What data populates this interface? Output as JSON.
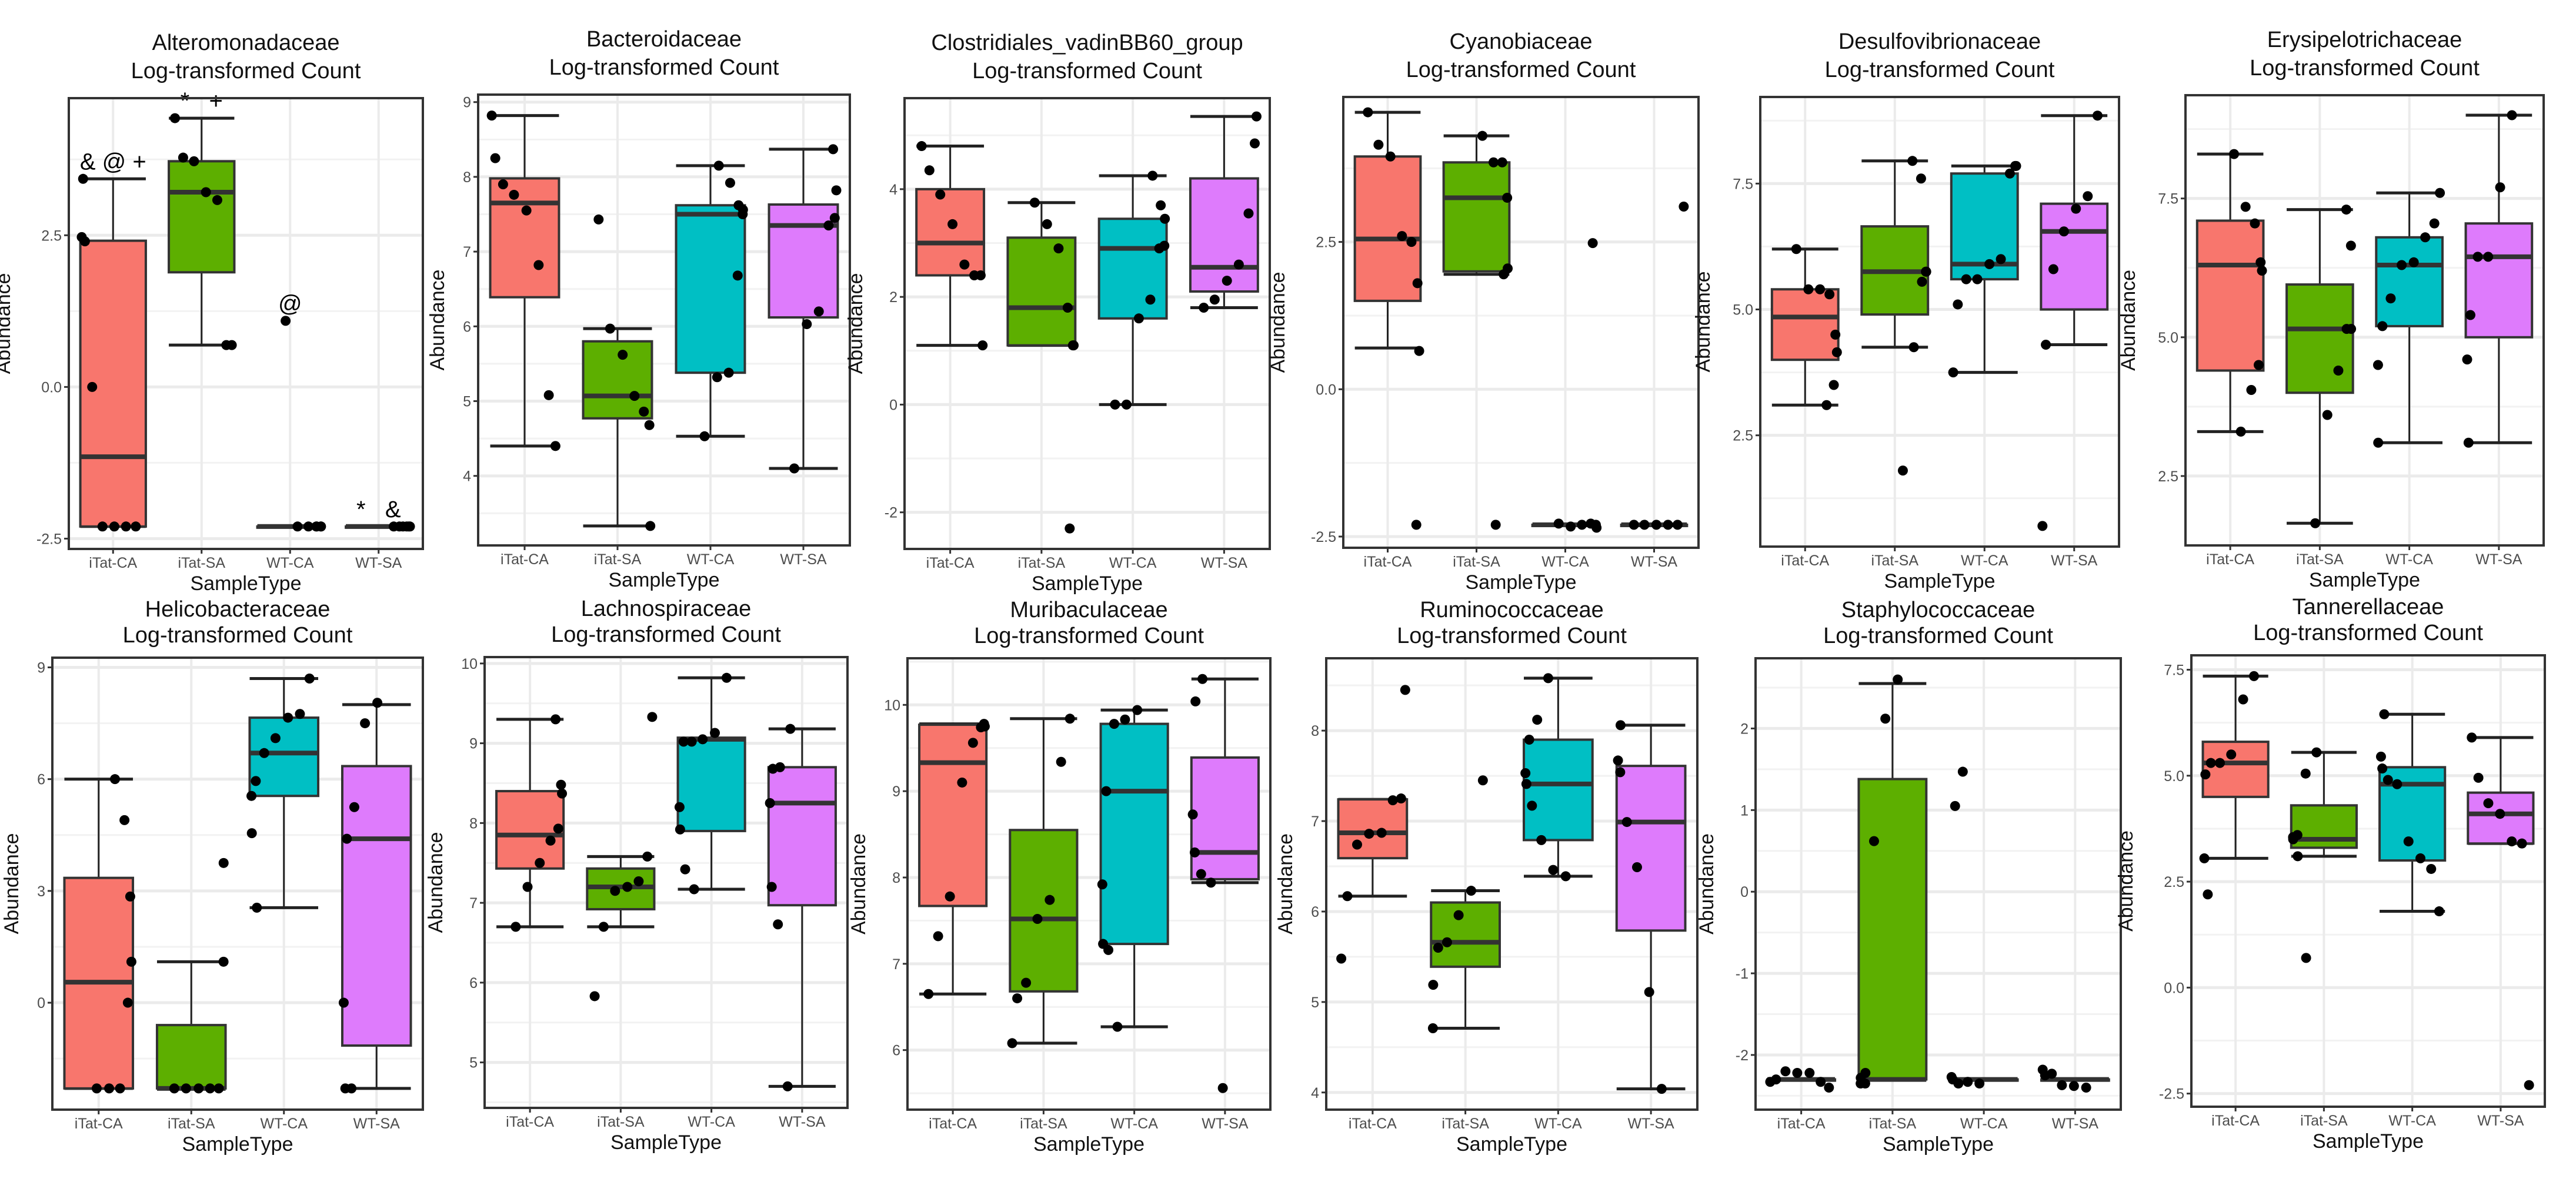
{
  "common": {
    "subtitle": "Log-transformed Count",
    "xlabel": "SampleType",
    "ylabel": "Abundance",
    "categories": [
      "iTat-CA",
      "iTat-SA",
      "WT-CA",
      "WT-SA"
    ],
    "colors": [
      "#F8766D",
      "#5DAF00",
      "#00BFC4",
      "#DE7BFC"
    ]
  },
  "chart_data": [
    {
      "type": "box",
      "title": "Alteromonadaceae",
      "ylim": [
        -2.67,
        4.76
      ],
      "yticks": [
        -2.5,
        0,
        2.5
      ],
      "tick_labels": [
        "-2.5",
        "0.0",
        "2.5"
      ],
      "groups": [
        {
          "whisker_low": -2.3,
          "q1": -2.3,
          "median": -1.15,
          "q3": 2.41,
          "whisker_high": 3.43,
          "points": [
            3.43,
            2.47,
            2.4,
            0,
            -2.3,
            -2.3,
            -2.3,
            -2.3
          ],
          "annotation": "& @ +"
        },
        {
          "whisker_low": 0.69,
          "q1": 1.89,
          "median": 3.21,
          "q3": 3.72,
          "whisker_high": 4.43,
          "points": [
            4.43,
            3.78,
            3.72,
            3.21,
            3.08,
            0.69,
            0.69
          ],
          "annotation": "*   +"
        },
        {
          "whisker_low": -2.3,
          "q1": -2.3,
          "median": -2.3,
          "q3": -2.3,
          "whisker_high": -2.3,
          "points": [
            1.09,
            -2.3,
            -2.3,
            -2.3,
            -2.3,
            -2.3,
            -2.3
          ],
          "annotation": "@"
        },
        {
          "whisker_low": -2.3,
          "q1": -2.3,
          "median": -2.3,
          "q3": -2.3,
          "whisker_high": -2.3,
          "points": [
            -2.3,
            -2.3,
            -2.3,
            -2.3,
            -2.3,
            -2.3
          ],
          "annotation": "*   &"
        }
      ]
    },
    {
      "type": "box",
      "title": "Bacteroidaceae",
      "ylim": [
        3.07,
        9.1
      ],
      "yticks": [
        4,
        5,
        6,
        7,
        8,
        9
      ],
      "tick_labels": [
        "4",
        "5",
        "6",
        "7",
        "8",
        "9"
      ],
      "groups": [
        {
          "whisker_low": 4.4,
          "q1": 6.39,
          "median": 7.65,
          "q3": 7.98,
          "whisker_high": 8.82,
          "points": [
            8.82,
            8.25,
            7.9,
            7.76,
            7.55,
            6.82,
            5.08,
            4.4
          ]
        },
        {
          "whisker_low": 3.33,
          "q1": 4.77,
          "median": 5.07,
          "q3": 5.8,
          "whisker_high": 5.97,
          "points": [
            7.43,
            5.97,
            5.62,
            5.07,
            4.86,
            4.68,
            3.33
          ]
        },
        {
          "whisker_low": 4.53,
          "q1": 5.38,
          "median": 7.5,
          "q3": 7.62,
          "whisker_high": 8.15,
          "points": [
            8.15,
            7.92,
            7.62,
            7.56,
            7.5,
            6.68,
            5.38,
            5.32,
            4.53
          ]
        },
        {
          "whisker_low": 4.1,
          "q1": 6.12,
          "median": 7.35,
          "q3": 7.63,
          "whisker_high": 8.37,
          "points": [
            8.37,
            7.82,
            7.45,
            7.35,
            6.2,
            6.03,
            4.1
          ]
        }
      ]
    },
    {
      "type": "box",
      "title": "Clostridiales_vadinBB60_group",
      "ylim": [
        -2.68,
        5.69
      ],
      "yticks": [
        -2,
        0,
        2,
        4
      ],
      "tick_labels": [
        "-2",
        "0",
        "2",
        "4"
      ],
      "groups": [
        {
          "whisker_low": 1.1,
          "q1": 2.4,
          "median": 3.0,
          "q3": 4.0,
          "whisker_high": 4.8,
          "points": [
            4.8,
            4.35,
            3.9,
            3.35,
            2.6,
            2.4,
            2.4,
            1.1
          ]
        },
        {
          "whisker_low": 1.1,
          "q1": 1.1,
          "median": 1.8,
          "q3": 3.1,
          "whisker_high": 3.75,
          "points": [
            3.75,
            3.35,
            2.9,
            1.8,
            1.1,
            1.1,
            -2.3
          ]
        },
        {
          "whisker_low": 0,
          "q1": 1.6,
          "median": 2.9,
          "q3": 3.45,
          "whisker_high": 4.25,
          "points": [
            4.25,
            3.7,
            3.45,
            2.95,
            2.9,
            1.95,
            1.6,
            0,
            0
          ]
        },
        {
          "whisker_low": 1.8,
          "q1": 2.1,
          "median": 2.55,
          "q3": 4.2,
          "whisker_high": 5.35,
          "points": [
            5.35,
            4.85,
            3.55,
            2.6,
            2.3,
            1.95,
            1.8
          ]
        }
      ]
    },
    {
      "type": "box",
      "title": "Cyanobiaceae",
      "ylim": [
        -2.69,
        4.96
      ],
      "yticks": [
        -2.5,
        0,
        2.5
      ],
      "tick_labels": [
        "-2.5",
        "0.0",
        "2.5"
      ],
      "groups": [
        {
          "whisker_low": 0.7,
          "q1": 1.5,
          "median": 2.55,
          "q3": 3.95,
          "whisker_high": 4.7,
          "points": [
            4.7,
            4.15,
            3.95,
            2.6,
            2.5,
            1.8,
            0.65,
            -2.3
          ]
        },
        {
          "whisker_low": 1.95,
          "q1": 2.0,
          "median": 3.25,
          "q3": 3.85,
          "whisker_high": 4.3,
          "points": [
            4.3,
            3.85,
            3.85,
            3.25,
            2.05,
            1.95,
            -2.3
          ]
        },
        {
          "whisker_low": -2.3,
          "q1": -2.3,
          "median": -2.3,
          "q3": -2.3,
          "whisker_high": -2.3,
          "points": [
            2.48,
            -2.35,
            -2.3,
            -2.28,
            -2.3,
            -2.33,
            -2.28
          ]
        },
        {
          "whisker_low": -2.3,
          "q1": -2.3,
          "median": -2.3,
          "q3": -2.3,
          "whisker_high": -2.3,
          "points": [
            3.1,
            -2.3,
            -2.3,
            -2.3,
            -2.3,
            -2.3
          ]
        }
      ]
    },
    {
      "type": "box",
      "title": "Desulfovibrionaceae",
      "ylim": [
        0.29,
        9.22
      ],
      "yticks": [
        2.5,
        5,
        7.5
      ],
      "tick_labels": [
        "2.5",
        "5.0",
        "7.5"
      ],
      "groups": [
        {
          "whisker_low": 3.1,
          "q1": 4.0,
          "median": 4.85,
          "q3": 5.4,
          "whisker_high": 6.2,
          "points": [
            6.2,
            5.4,
            5.4,
            5.3,
            4.5,
            4.15,
            3.5,
            3.1
          ]
        },
        {
          "whisker_low": 4.25,
          "q1": 4.9,
          "median": 5.75,
          "q3": 6.65,
          "whisker_high": 7.95,
          "points": [
            7.95,
            7.6,
            5.75,
            5.75,
            5.55,
            4.25,
            1.8
          ]
        },
        {
          "whisker_low": 3.75,
          "q1": 5.6,
          "median": 5.9,
          "q3": 7.7,
          "whisker_high": 7.85,
          "points": [
            7.85,
            7.85,
            7.7,
            6.0,
            5.9,
            5.6,
            5.6,
            5.1,
            3.75
          ]
        },
        {
          "whisker_low": 4.3,
          "q1": 5.0,
          "median": 6.55,
          "q3": 7.1,
          "whisker_high": 8.85,
          "points": [
            8.85,
            7.25,
            7.0,
            6.55,
            5.8,
            4.3,
            0.7
          ]
        }
      ]
    },
    {
      "type": "box",
      "title": "Erysipelotrichaceae",
      "ylim": [
        1.25,
        9.36
      ],
      "yticks": [
        2.5,
        5,
        7.5
      ],
      "tick_labels": [
        "2.5",
        "5.0",
        "7.5"
      ],
      "groups": [
        {
          "whisker_low": 3.3,
          "q1": 4.4,
          "median": 6.3,
          "q3": 7.1,
          "whisker_high": 8.3,
          "points": [
            8.3,
            7.35,
            7.05,
            6.35,
            6.2,
            4.5,
            4.05,
            3.3
          ]
        },
        {
          "whisker_low": 1.65,
          "q1": 4.0,
          "median": 5.15,
          "q3": 5.95,
          "whisker_high": 7.3,
          "points": [
            7.3,
            6.65,
            5.15,
            5.15,
            4.4,
            3.6,
            1.65
          ]
        },
        {
          "whisker_low": 3.1,
          "q1": 5.2,
          "median": 6.3,
          "q3": 6.8,
          "whisker_high": 7.6,
          "points": [
            7.6,
            7.05,
            6.8,
            6.35,
            6.3,
            5.7,
            5.2,
            4.5,
            3.1
          ]
        },
        {
          "whisker_low": 3.1,
          "q1": 5.0,
          "median": 6.45,
          "q3": 7.05,
          "whisker_high": 9.0,
          "points": [
            9.0,
            7.7,
            6.45,
            6.45,
            5.4,
            4.6,
            3.1
          ]
        }
      ]
    },
    {
      "type": "box",
      "title": "Helicobacteraceae",
      "ylim": [
        -2.87,
        9.26
      ],
      "yticks": [
        0,
        3,
        6,
        9
      ],
      "tick_labels": [
        "0",
        "3",
        "6",
        "9"
      ],
      "groups": [
        {
          "whisker_low": -2.3,
          "q1": -2.3,
          "median": 0.55,
          "q3": 3.35,
          "whisker_high": 6.0,
          "points": [
            6.0,
            4.9,
            2.85,
            1.1,
            0,
            -2.3,
            -2.3,
            -2.3
          ]
        },
        {
          "whisker_low": -2.3,
          "q1": -2.3,
          "median": -2.3,
          "q3": -0.6,
          "whisker_high": 1.1,
          "points": [
            3.75,
            1.1,
            -2.3,
            -2.3,
            -2.3,
            -2.3,
            -2.3
          ]
        },
        {
          "whisker_low": 2.55,
          "q1": 5.55,
          "median": 6.7,
          "q3": 7.65,
          "whisker_high": 8.7,
          "points": [
            8.7,
            7.75,
            7.65,
            7.1,
            6.7,
            5.95,
            5.55,
            4.55,
            2.55
          ]
        },
        {
          "whisker_low": -2.3,
          "q1": -1.15,
          "median": 4.4,
          "q3": 6.35,
          "whisker_high": 8.0,
          "points": [
            8.05,
            7.5,
            5.25,
            4.4,
            0,
            -2.3,
            -2.3
          ]
        }
      ]
    },
    {
      "type": "box",
      "title": "Lachnospiraceae",
      "ylim": [
        4.43,
        10.08
      ],
      "yticks": [
        5,
        6,
        7,
        8,
        9,
        10
      ],
      "tick_labels": [
        "5",
        "6",
        "7",
        "8",
        "9",
        "10"
      ],
      "groups": [
        {
          "whisker_low": 6.7,
          "q1": 7.43,
          "median": 7.85,
          "q3": 8.4,
          "whisker_high": 9.3,
          "points": [
            9.3,
            8.48,
            8.37,
            7.93,
            7.78,
            7.5,
            7.2,
            6.7
          ]
        },
        {
          "whisker_low": 6.7,
          "q1": 6.92,
          "median": 7.2,
          "q3": 7.43,
          "whisker_high": 7.58,
          "points": [
            9.33,
            7.58,
            7.27,
            7.2,
            7.15,
            6.7,
            5.83
          ]
        },
        {
          "whisker_low": 7.17,
          "q1": 7.9,
          "median": 9.05,
          "q3": 9.07,
          "whisker_high": 9.82,
          "points": [
            9.82,
            9.13,
            9.05,
            9.02,
            9.02,
            8.2,
            7.92,
            7.42,
            7.17
          ]
        },
        {
          "whisker_low": 4.7,
          "q1": 6.97,
          "median": 8.25,
          "q3": 8.7,
          "whisker_high": 9.18,
          "points": [
            9.18,
            8.7,
            8.68,
            8.25,
            7.2,
            6.73,
            4.7
          ]
        }
      ]
    },
    {
      "type": "box",
      "title": "Muribaculaceae",
      "ylim": [
        5.31,
        10.54
      ],
      "yticks": [
        6,
        7,
        8,
        9,
        10
      ],
      "tick_labels": [
        "6",
        "7",
        "8",
        "9",
        "10"
      ],
      "groups": [
        {
          "whisker_low": 6.65,
          "q1": 7.67,
          "median": 9.33,
          "q3": 9.77,
          "whisker_high": 9.78,
          "points": [
            9.78,
            9.75,
            9.74,
            9.56,
            9.1,
            7.78,
            7.32,
            6.65
          ]
        },
        {
          "whisker_low": 6.08,
          "q1": 6.68,
          "median": 7.52,
          "q3": 8.55,
          "whisker_high": 9.84,
          "points": [
            9.84,
            9.34,
            7.74,
            7.52,
            6.78,
            6.6,
            6.08
          ]
        },
        {
          "whisker_low": 6.27,
          "q1": 7.23,
          "median": 9.0,
          "q3": 9.78,
          "whisker_high": 9.94,
          "points": [
            9.94,
            9.83,
            9.78,
            9.0,
            7.92,
            7.23,
            7.16,
            6.27
          ]
        },
        {
          "whisker_low": 7.94,
          "q1": 7.98,
          "median": 8.29,
          "q3": 9.39,
          "whisker_high": 10.3,
          "points": [
            10.3,
            10.04,
            8.73,
            8.29,
            8.04,
            7.94,
            5.56
          ]
        }
      ]
    },
    {
      "type": "box",
      "title": "Ruminococcaceae",
      "ylim": [
        3.81,
        8.8
      ],
      "yticks": [
        4,
        5,
        6,
        7,
        8
      ],
      "tick_labels": [
        "4",
        "5",
        "6",
        "7",
        "8"
      ],
      "groups": [
        {
          "whisker_low": 6.17,
          "q1": 6.59,
          "median": 6.87,
          "q3": 7.24,
          "whisker_high": 7.24,
          "points": [
            8.45,
            7.25,
            7.23,
            6.87,
            6.86,
            6.74,
            6.17,
            5.48
          ]
        },
        {
          "whisker_low": 4.71,
          "q1": 5.39,
          "median": 5.66,
          "q3": 6.1,
          "whisker_high": 6.23,
          "points": [
            7.45,
            6.23,
            5.96,
            5.66,
            5.6,
            5.19,
            4.71
          ]
        },
        {
          "whisker_low": 6.39,
          "q1": 6.79,
          "median": 7.41,
          "q3": 7.9,
          "whisker_high": 8.58,
          "points": [
            8.58,
            8.12,
            7.9,
            7.53,
            7.41,
            7.17,
            6.79,
            6.46,
            6.39
          ]
        },
        {
          "whisker_low": 4.04,
          "q1": 5.79,
          "median": 6.99,
          "q3": 7.61,
          "whisker_high": 8.06,
          "points": [
            8.06,
            7.67,
            7.54,
            6.99,
            6.49,
            5.11,
            4.04
          ]
        }
      ]
    },
    {
      "type": "box",
      "title": "Staphylococcaceae",
      "ylim": [
        -2.67,
        2.86
      ],
      "yticks": [
        -2,
        -1,
        0,
        1,
        2
      ],
      "tick_labels": [
        "-2",
        "-1",
        "0",
        "1",
        "2"
      ],
      "groups": [
        {
          "whisker_low": -2.3,
          "q1": -2.3,
          "median": -2.3,
          "q3": -2.3,
          "whisker_high": -2.3,
          "points": [
            -2.4,
            -2.33,
            -2.22,
            -2.22,
            -2.2,
            -2.3,
            -2.33
          ]
        },
        {
          "whisker_low": -2.3,
          "q1": -2.3,
          "median": -2.3,
          "q3": 1.38,
          "whisker_high": 2.55,
          "points": [
            2.6,
            2.12,
            0.62,
            -2.22,
            -2.28,
            -2.35,
            -2.35
          ]
        },
        {
          "whisker_low": -2.3,
          "q1": -2.3,
          "median": -2.3,
          "q3": -2.3,
          "whisker_high": -2.3,
          "points": [
            1.47,
            1.05,
            -2.27,
            -2.3,
            -2.35,
            -2.33,
            -2.35
          ]
        },
        {
          "whisker_low": -2.3,
          "q1": -2.3,
          "median": -2.3,
          "q3": -2.3,
          "whisker_high": -2.3,
          "points": [
            -2.18,
            -2.25,
            -2.23,
            -2.37,
            -2.38,
            -2.4
          ]
        }
      ]
    },
    {
      "type": "box",
      "title": "Tannerellaceae",
      "ylim": [
        -2.81,
        7.84
      ],
      "yticks": [
        -2.5,
        0,
        2.5,
        5,
        7.5
      ],
      "tick_labels": [
        "-2.5",
        "0.0",
        "2.5",
        "5.0",
        "7.5"
      ],
      "groups": [
        {
          "whisker_low": 3.05,
          "q1": 4.5,
          "median": 5.3,
          "q3": 5.8,
          "whisker_high": 7.35,
          "points": [
            7.35,
            6.8,
            5.5,
            5.3,
            5.3,
            5.03,
            3.05,
            2.2
          ]
        },
        {
          "whisker_low": 3.1,
          "q1": 3.3,
          "median": 3.5,
          "q3": 4.3,
          "whisker_high": 5.55,
          "points": [
            5.55,
            5.05,
            3.6,
            3.55,
            3.5,
            3.1,
            0.7
          ]
        },
        {
          "whisker_low": 1.8,
          "q1": 3.0,
          "median": 4.8,
          "q3": 5.2,
          "whisker_high": 6.45,
          "points": [
            6.45,
            5.45,
            5.17,
            4.9,
            4.8,
            3.45,
            3.05,
            2.8,
            1.8
          ]
        },
        {
          "whisker_low": 3.4,
          "q1": 3.4,
          "median": 4.1,
          "q3": 4.6,
          "whisker_high": 5.9,
          "points": [
            5.9,
            4.95,
            4.35,
            4.1,
            3.45,
            3.4,
            -2.3
          ]
        }
      ]
    }
  ]
}
